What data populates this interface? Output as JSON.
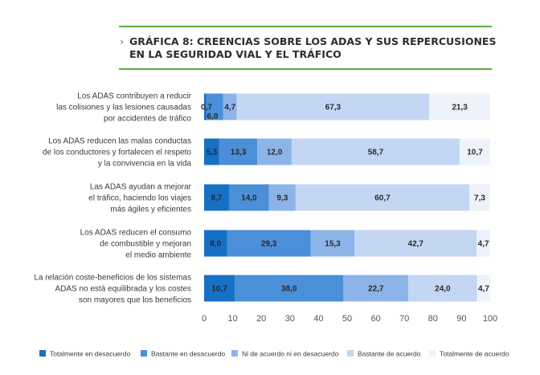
{
  "colors": {
    "accent_line": "#5cae3c",
    "series": [
      "#1670c4",
      "#4a8fd8",
      "#8cb4e8",
      "#c3d6f4",
      "#edf2fb"
    ]
  },
  "chart_data": {
    "type": "bar",
    "orientation": "horizontal",
    "stacked": true,
    "title_lines": [
      "GRÁFICA 8: CREENCIAS SOBRE LOS ADAS Y SUS REPERCUSIONES",
      "EN LA SEGURIDAD VIAL Y EL TRÁFICO"
    ],
    "title_marker": "›",
    "categories": [
      [
        "Los ADAS contribuyen a reducir",
        "las colisiones y las lesiones causadas",
        "por accidentes de tráfico"
      ],
      [
        "Los ADAS reducen las malas conductas",
        "de los conductores y fortalecen el respeto",
        "y la convivencia en la vida"
      ],
      [
        "Las ADAS ayudan a mejorar",
        "el tráfico, haciendo los viajes",
        "más ágiles y eficientes"
      ],
      [
        "Los ADAS reducen el consumo",
        "de combustible y mejoran",
        "el medio ambiente"
      ],
      [
        "La relación coste-beneficios de los sistemas",
        "ADAS no está equilibrada y los costes",
        "son mayores que los beneficios"
      ]
    ],
    "series": [
      {
        "name": "Totalmente en desacuerdo",
        "values": [
          0.7,
          5.3,
          8.7,
          8.0,
          10.7
        ],
        "labels": [
          "0,7",
          "5,3",
          "8,7",
          "8,0",
          "10,7"
        ]
      },
      {
        "name": "Bastante en desacuerdo",
        "values": [
          6.0,
          13.3,
          14.0,
          29.3,
          38.0
        ],
        "labels": [
          "6,0",
          "13,3",
          "14,0",
          "29,3",
          "38,0"
        ]
      },
      {
        "name": "Ni de acuerdo ni en desacuerdo",
        "values": [
          4.7,
          12.0,
          9.3,
          15.3,
          22.7
        ],
        "labels": [
          "4,7",
          "12,0",
          "9,3",
          "15,3",
          "22,7"
        ]
      },
      {
        "name": "Bastante de acuerdo",
        "values": [
          67.3,
          58.7,
          60.7,
          42.7,
          24.0
        ],
        "labels": [
          "67,3",
          "58,7",
          "60,7",
          "42,7",
          "24,0"
        ]
      },
      {
        "name": "Totalmente de acuerdo",
        "values": [
          21.3,
          10.7,
          7.3,
          4.7,
          4.7
        ],
        "labels": [
          "21,3",
          "10,7",
          "7,3",
          "4,7",
          "4,7"
        ]
      }
    ],
    "xlim": [
      0,
      100
    ],
    "x_ticks": [
      0,
      10,
      20,
      30,
      40,
      50,
      60,
      70,
      80,
      90,
      100
    ],
    "legend_position": "bottom",
    "grid": false
  }
}
